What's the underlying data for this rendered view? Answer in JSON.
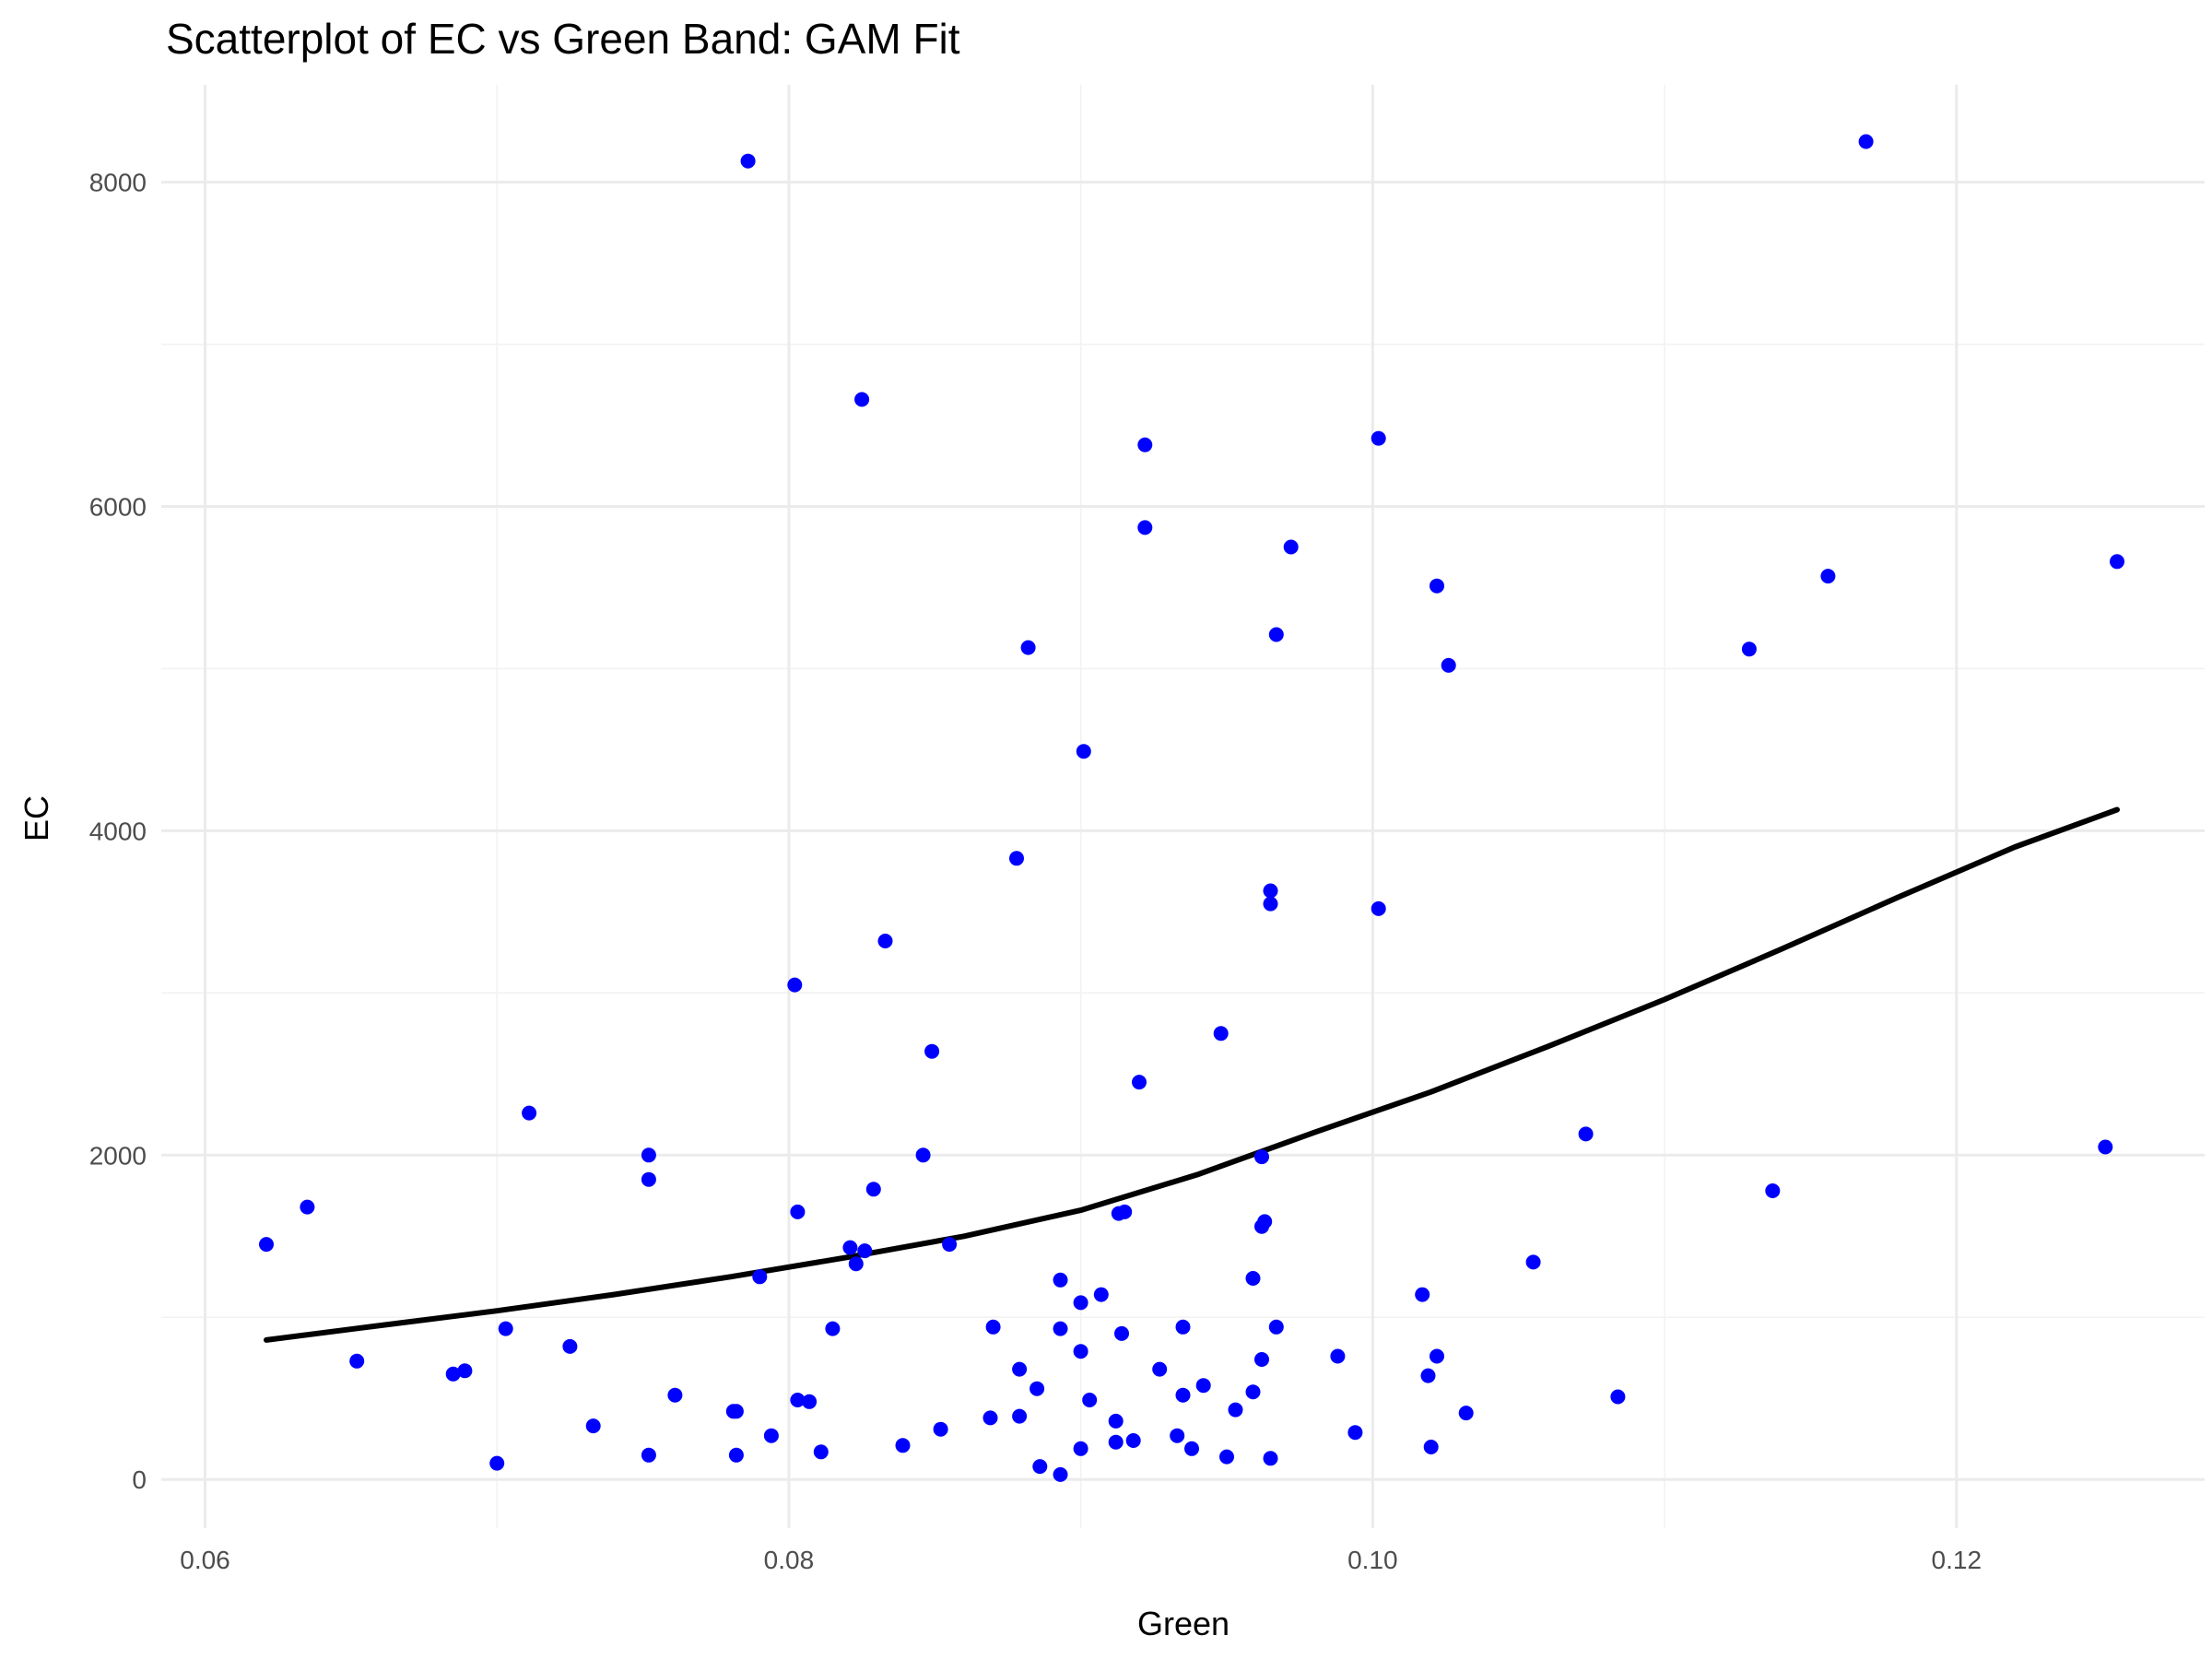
{
  "chart_data": {
    "type": "scatter",
    "title": "Scatterplot of EC vs Green Band: GAM Fit",
    "xlabel": "Green",
    "ylabel": "EC",
    "xlim": [
      0.0585,
      0.1285
    ],
    "ylim": [
      -300,
      8600
    ],
    "x_ticks": [
      0.06,
      0.08,
      0.1,
      0.12
    ],
    "x_tick_labels": [
      "0.06",
      "0.08",
      "0.10",
      "0.12"
    ],
    "y_ticks": [
      0,
      2000,
      4000,
      6000,
      8000
    ],
    "y_tick_labels": [
      "0",
      "2000",
      "4000",
      "6000",
      "8000"
    ],
    "grid": true,
    "colors": {
      "points": "#0000ff",
      "fit": "#000000",
      "grid": "#ebebeb"
    },
    "points": [
      [
        0.0621,
        1450
      ],
      [
        0.0635,
        1680
      ],
      [
        0.0652,
        730
      ],
      [
        0.0685,
        650
      ],
      [
        0.0689,
        670
      ],
      [
        0.07,
        100
      ],
      [
        0.0703,
        930
      ],
      [
        0.0711,
        2260
      ],
      [
        0.0725,
        820
      ],
      [
        0.0733,
        330
      ],
      [
        0.0752,
        2000
      ],
      [
        0.0752,
        1850
      ],
      [
        0.0752,
        150
      ],
      [
        0.0761,
        520
      ],
      [
        0.0781,
        420
      ],
      [
        0.0782,
        420
      ],
      [
        0.0782,
        150
      ],
      [
        0.0786,
        8130
      ],
      [
        0.079,
        1250
      ],
      [
        0.0794,
        270
      ],
      [
        0.0802,
        3050
      ],
      [
        0.0803,
        1650
      ],
      [
        0.0803,
        490
      ],
      [
        0.0807,
        480
      ],
      [
        0.0811,
        170
      ],
      [
        0.0815,
        930
      ],
      [
        0.0821,
        1430
      ],
      [
        0.0823,
        1330
      ],
      [
        0.0825,
        6660
      ],
      [
        0.0826,
        1410
      ],
      [
        0.0829,
        1790
      ],
      [
        0.0833,
        3320
      ],
      [
        0.0839,
        210
      ],
      [
        0.0846,
        2000
      ],
      [
        0.0849,
        2640
      ],
      [
        0.0852,
        310
      ],
      [
        0.0855,
        1450
      ],
      [
        0.0869,
        380
      ],
      [
        0.087,
        940
      ],
      [
        0.0878,
        3830
      ],
      [
        0.0879,
        680
      ],
      [
        0.0879,
        390
      ],
      [
        0.0882,
        5130
      ],
      [
        0.0885,
        560
      ],
      [
        0.0886,
        80
      ],
      [
        0.0893,
        1230
      ],
      [
        0.0893,
        930
      ],
      [
        0.0893,
        30
      ],
      [
        0.09,
        1090
      ],
      [
        0.09,
        790
      ],
      [
        0.09,
        190
      ],
      [
        0.0901,
        4490
      ],
      [
        0.0903,
        490
      ],
      [
        0.0907,
        1140
      ],
      [
        0.0912,
        230
      ],
      [
        0.0912,
        360
      ],
      [
        0.0913,
        1640
      ],
      [
        0.0914,
        900
      ],
      [
        0.0915,
        1650
      ],
      [
        0.0918,
        240
      ],
      [
        0.092,
        2450
      ],
      [
        0.0922,
        6380
      ],
      [
        0.0922,
        5870
      ],
      [
        0.0927,
        680
      ],
      [
        0.0933,
        270
      ],
      [
        0.0935,
        940
      ],
      [
        0.0935,
        520
      ],
      [
        0.0938,
        190
      ],
      [
        0.0942,
        580
      ],
      [
        0.0948,
        2750
      ],
      [
        0.095,
        140
      ],
      [
        0.0953,
        430
      ],
      [
        0.0959,
        1240
      ],
      [
        0.0959,
        540
      ],
      [
        0.0962,
        1990
      ],
      [
        0.0962,
        1560
      ],
      [
        0.0962,
        740
      ],
      [
        0.0963,
        1590
      ],
      [
        0.0965,
        3630
      ],
      [
        0.0965,
        3550
      ],
      [
        0.0965,
        130
      ],
      [
        0.0967,
        5210
      ],
      [
        0.0967,
        940
      ],
      [
        0.0972,
        5750
      ],
      [
        0.0988,
        760
      ],
      [
        0.0994,
        290
      ],
      [
        0.1002,
        6420
      ],
      [
        0.1002,
        3520
      ],
      [
        0.1017,
        1140
      ],
      [
        0.1019,
        640
      ],
      [
        0.102,
        200
      ],
      [
        0.1022,
        760
      ],
      [
        0.1022,
        5510
      ],
      [
        0.1026,
        5020
      ],
      [
        0.1032,
        410
      ],
      [
        0.1055,
        1340
      ],
      [
        0.1073,
        2130
      ],
      [
        0.1084,
        510
      ],
      [
        0.1129,
        5120
      ],
      [
        0.1137,
        1780
      ],
      [
        0.1156,
        5570
      ],
      [
        0.1169,
        8250
      ],
      [
        0.1251,
        2050
      ],
      [
        0.1255,
        5660
      ]
    ],
    "fit_line": {
      "x": [
        0.0621,
        0.066,
        0.07,
        0.074,
        0.078,
        0.082,
        0.086,
        0.09,
        0.094,
        0.098,
        0.102,
        0.106,
        0.11,
        0.114,
        0.118,
        0.122,
        0.1255
      ],
      "y": [
        860,
        950,
        1040,
        1140,
        1250,
        1370,
        1500,
        1660,
        1880,
        2140,
        2390,
        2670,
        2960,
        3270,
        3590,
        3900,
        4130
      ]
    }
  }
}
